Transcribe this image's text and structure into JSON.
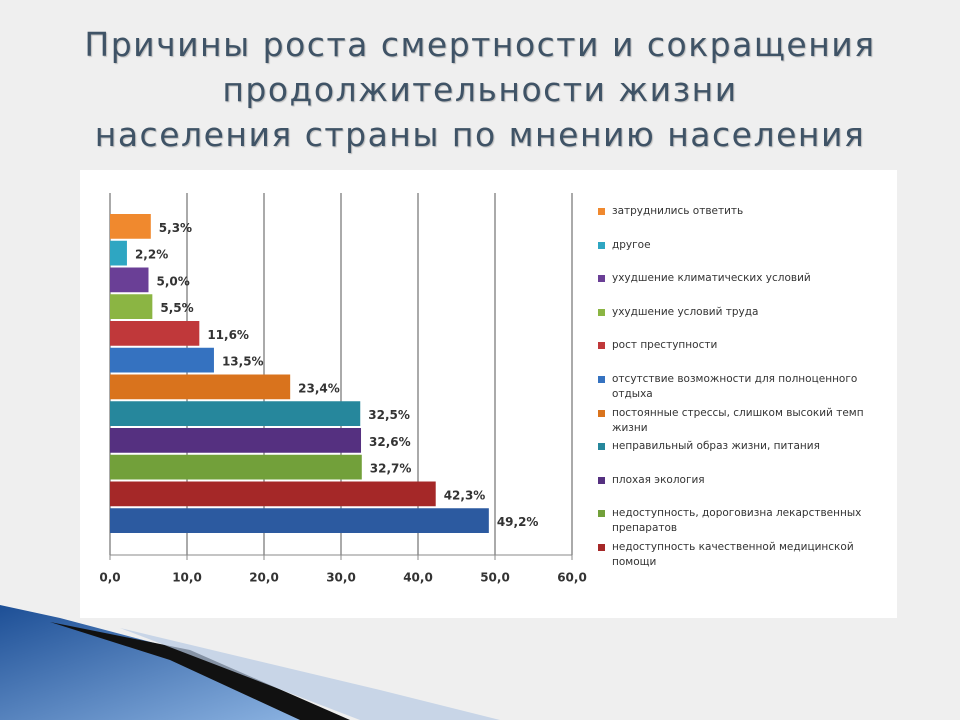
{
  "chart_data": {
    "type": "barh",
    "title": [
      "Причины роста смертности и сокращения",
      "продолжительности жизни",
      "населения страны по мнению населения"
    ],
    "categories": [
      "затруднились ответить",
      "другое",
      "ухудшение климатических условий",
      "ухудшение условий труда",
      "рост преступности",
      "отсутствие возможности для полноценного отдыха",
      "постоянные стрессы, слишком высокий темп жизни",
      "неправильный образ жизни, питания",
      "плохая экология",
      "недоступность, дороговизна лекарственных препаратов",
      "недоступность качественной медицинской помощи",
      null
    ],
    "values": [
      5.3,
      2.2,
      5.0,
      5.5,
      11.6,
      13.5,
      23.4,
      32.5,
      32.6,
      32.7,
      42.3,
      49.2
    ],
    "value_labels": [
      "5,3%",
      "2,2%",
      "5,0%",
      "5,5%",
      "11,6%",
      "13,5%",
      "23,4%",
      "32,5%",
      "32,6%",
      "32,7%",
      "42,3%",
      "49,2%"
    ],
    "colors": [
      "#f0892e",
      "#2ea6c2",
      "#6a3f96",
      "#8bb543",
      "#c0383a",
      "#3572c0",
      "#d9731d",
      "#26879c",
      "#553080",
      "#72a03a",
      "#a52828",
      "#2c5aa0"
    ],
    "xlim": [
      0,
      60
    ],
    "xticks": [
      {
        "value": 0,
        "label": "0,0"
      },
      {
        "value": 10,
        "label": "10,0"
      },
      {
        "value": 20,
        "label": "20,0"
      },
      {
        "value": 30,
        "label": "30,0"
      },
      {
        "value": 40,
        "label": "40,0"
      },
      {
        "value": 50,
        "label": "50,0"
      },
      {
        "value": 60,
        "label": "60,0"
      }
    ],
    "grid": true
  }
}
